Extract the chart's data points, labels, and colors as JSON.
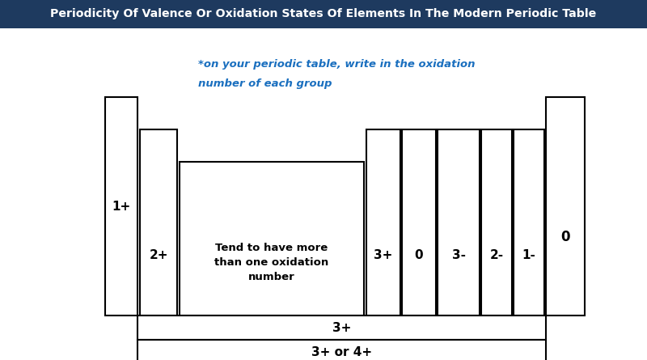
{
  "title": "Periodicity Of Valence Or Oxidation States Of Elements In The Modern Periodic Table",
  "title_bg": "#1e3a5f",
  "title_color": "#ffffff",
  "bg_color": "#ffffff",
  "annotation_line1": "*on your periodic table, write in the oxidation",
  "annotation_line2": "number of each group",
  "annotation_color": "#1a6fbf",
  "labels": {
    "group1": "1+",
    "group2": "2+",
    "transition": "Tend to have more\nthan one oxidation\nnumber",
    "g13": "3+",
    "g14": "0",
    "g15": "3-",
    "g16": "2-",
    "g17": "1-",
    "g18": "0",
    "lanthanides": "3+",
    "actinides": "3+ or 4+"
  }
}
